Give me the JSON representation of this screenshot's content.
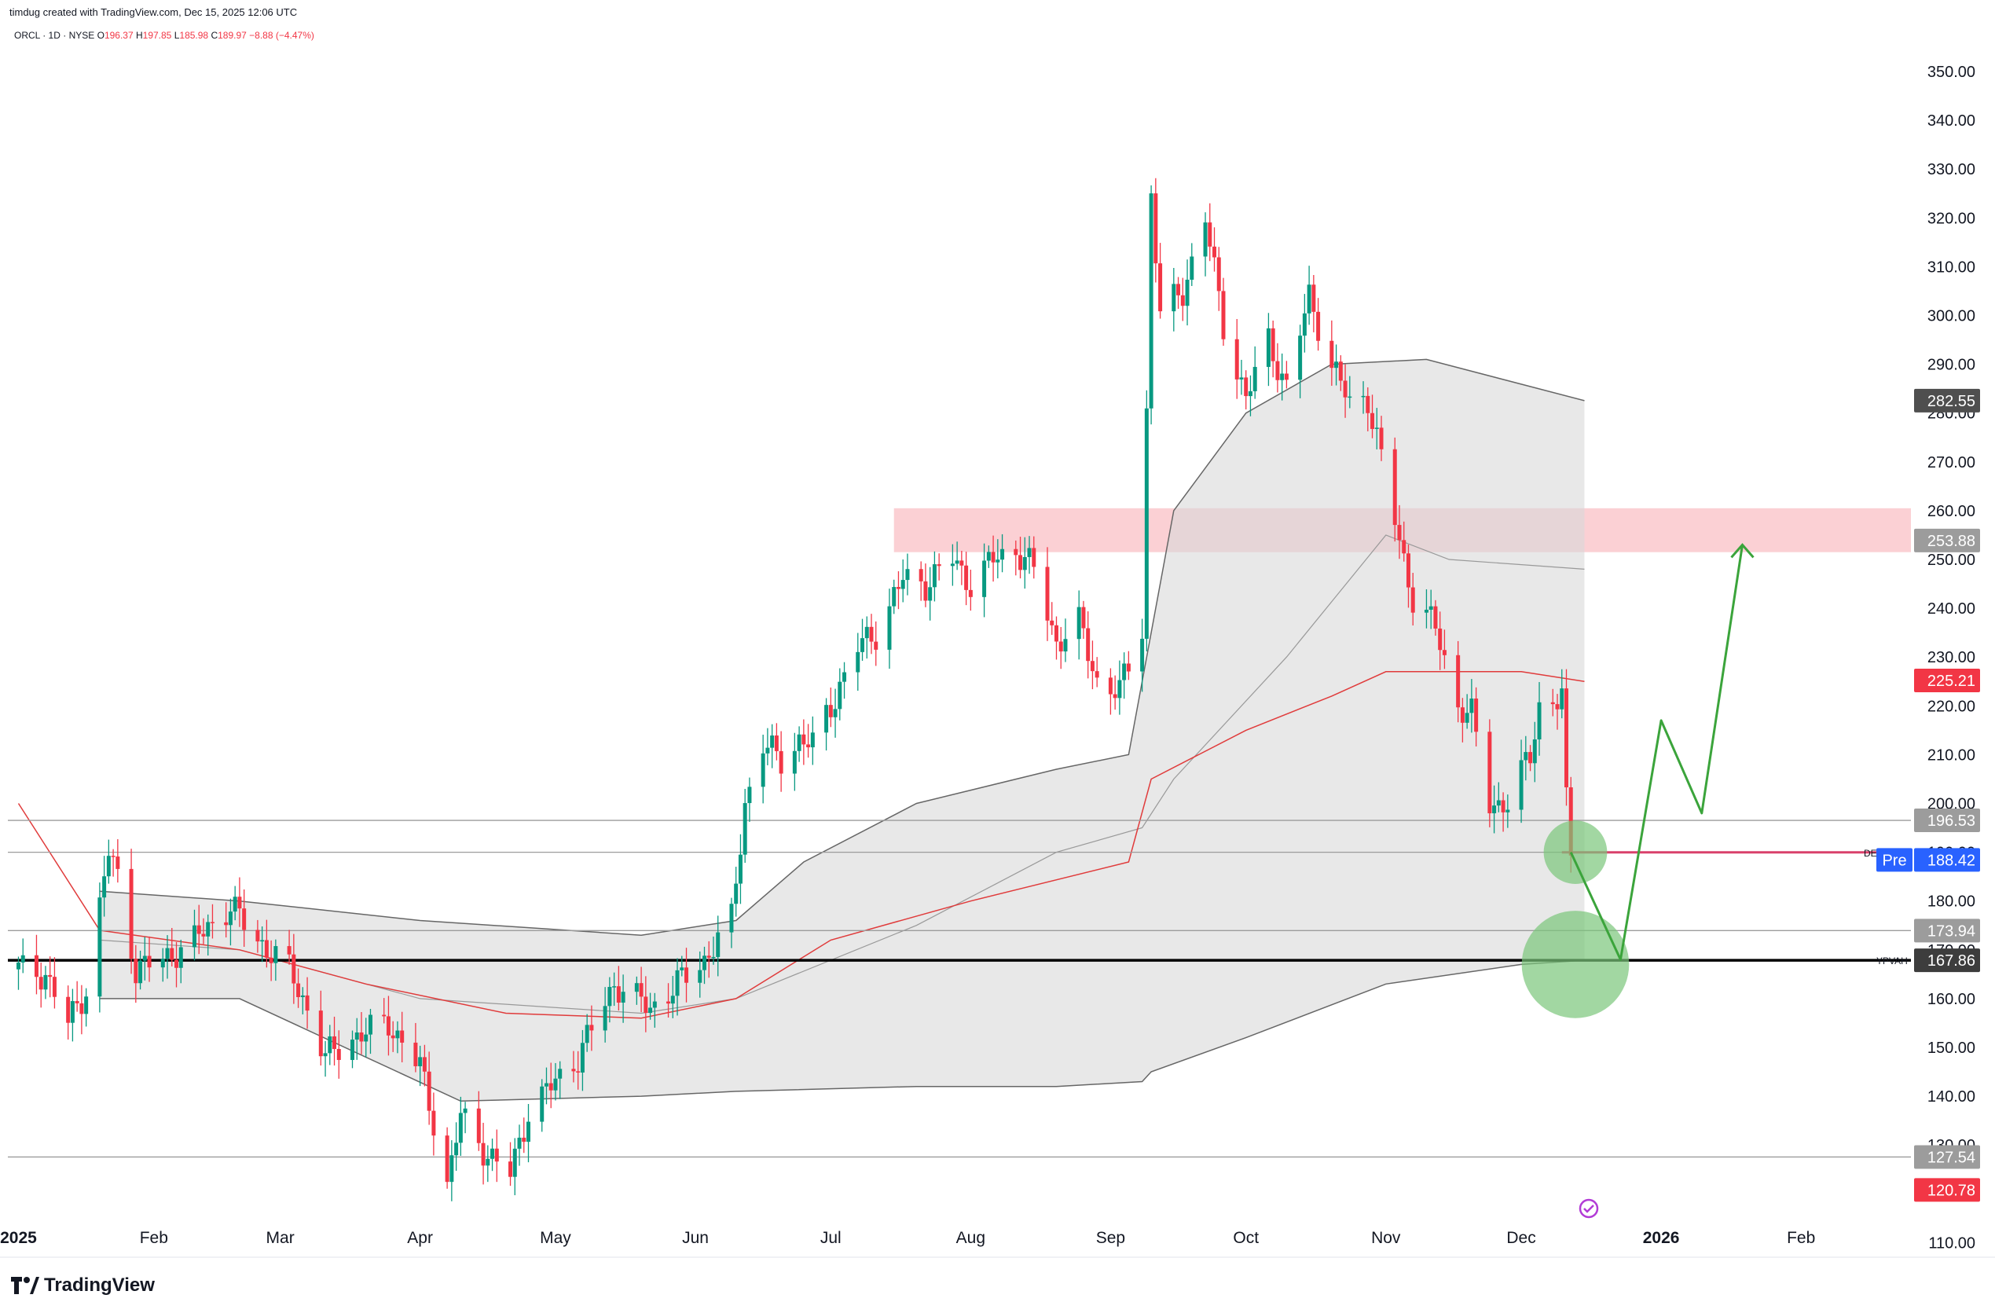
{
  "header": {
    "credit": "timdug created with TradingView.com, Dec 15, 2025 12:06 UTC",
    "symbol": "ORCL · 1D · NYSE",
    "o_label": "O",
    "o_value": "196.37",
    "h_label": "H",
    "h_value": "197.85",
    "l_label": "L",
    "l_value": "185.98",
    "c_label": "C",
    "c_value": "189.97 −8.88 (−4.47%)"
  },
  "branding": {
    "logo_text": "TradingView"
  },
  "colors": {
    "up": "#089981",
    "down": "#f23645",
    "zone": "#f7a9b1",
    "band_fill": "#d9d9d9",
    "projection": "#3ba43b",
    "circle": "#7bc67b",
    "ma": "#e03b3b"
  },
  "chart_data": {
    "type": "candlestick",
    "ylim": [
      107,
      355
    ],
    "y_ticks": [
      110,
      120,
      130,
      140,
      150,
      160,
      170,
      180,
      190,
      200,
      210,
      220,
      230,
      240,
      250,
      260,
      270,
      280,
      290,
      300,
      310,
      320,
      330,
      340,
      350
    ],
    "x_labels": [
      {
        "label": "2025",
        "date": "2025-01-02"
      },
      {
        "label": "Feb",
        "date": "2025-02-01"
      },
      {
        "label": "Mar",
        "date": "2025-03-01"
      },
      {
        "label": "Apr",
        "date": "2025-04-01"
      },
      {
        "label": "May",
        "date": "2025-05-01"
      },
      {
        "label": "Jun",
        "date": "2025-06-01"
      },
      {
        "label": "Jul",
        "date": "2025-07-01"
      },
      {
        "label": "Aug",
        "date": "2025-08-01"
      },
      {
        "label": "Sep",
        "date": "2025-09-01"
      },
      {
        "label": "Oct",
        "date": "2025-10-01"
      },
      {
        "label": "Nov",
        "date": "2025-11-01"
      },
      {
        "label": "Dec",
        "date": "2025-12-01"
      },
      {
        "label": "2026",
        "date": "2026-01-01"
      },
      {
        "label": "Feb",
        "date": "2026-02-01"
      }
    ],
    "x_range": [
      "2024-12-31",
      "2026-02-25"
    ],
    "price_path": [
      [
        "2025-01-02",
        166
      ],
      [
        "2025-01-08",
        165
      ],
      [
        "2025-01-13",
        155
      ],
      [
        "2025-01-17",
        162
      ],
      [
        "2025-01-22",
        190
      ],
      [
        "2025-01-24",
        185
      ],
      [
        "2025-01-28",
        166
      ],
      [
        "2025-02-03",
        168
      ],
      [
        "2025-02-10",
        172
      ],
      [
        "2025-02-18",
        179
      ],
      [
        "2025-02-24",
        172
      ],
      [
        "2025-03-03",
        166
      ],
      [
        "2025-03-07",
        158
      ],
      [
        "2025-03-11",
        148
      ],
      [
        "2025-03-17",
        152
      ],
      [
        "2025-03-25",
        155
      ],
      [
        "2025-04-01",
        146
      ],
      [
        "2025-04-04",
        135
      ],
      [
        "2025-04-07",
        122
      ],
      [
        "2025-04-10",
        136
      ],
      [
        "2025-04-16",
        128
      ],
      [
        "2025-04-21",
        124
      ],
      [
        "2025-04-25",
        137
      ],
      [
        "2025-05-01",
        143
      ],
      [
        "2025-05-06",
        148
      ],
      [
        "2025-05-14",
        163
      ],
      [
        "2025-05-22",
        158
      ],
      [
        "2025-05-28",
        163
      ],
      [
        "2025-06-03",
        168
      ],
      [
        "2025-06-09",
        176
      ],
      [
        "2025-06-12",
        200
      ],
      [
        "2025-06-16",
        212
      ],
      [
        "2025-06-20",
        209
      ],
      [
        "2025-06-24",
        213
      ],
      [
        "2025-06-27",
        212
      ],
      [
        "2025-07-01",
        220
      ],
      [
        "2025-07-07",
        232
      ],
      [
        "2025-07-11",
        235
      ],
      [
        "2025-07-17",
        246
      ],
      [
        "2025-07-22",
        245
      ],
      [
        "2025-07-28",
        250
      ],
      [
        "2025-08-01",
        245
      ],
      [
        "2025-08-06",
        250
      ],
      [
        "2025-08-11",
        252
      ],
      [
        "2025-08-15",
        248
      ],
      [
        "2025-08-20",
        233
      ],
      [
        "2025-08-25",
        237
      ],
      [
        "2025-08-29",
        225
      ],
      [
        "2025-09-03",
        223
      ],
      [
        "2025-09-08",
        236
      ],
      [
        "2025-09-10",
        325
      ],
      [
        "2025-09-12",
        300
      ],
      [
        "2025-09-17",
        305
      ],
      [
        "2025-09-22",
        320
      ],
      [
        "2025-09-26",
        298
      ],
      [
        "2025-10-01",
        283
      ],
      [
        "2025-10-06",
        295
      ],
      [
        "2025-10-10",
        285
      ],
      [
        "2025-10-15",
        304
      ],
      [
        "2025-10-20",
        290
      ],
      [
        "2025-10-24",
        282
      ],
      [
        "2025-10-28",
        283
      ],
      [
        "2025-11-03",
        258
      ],
      [
        "2025-11-07",
        242
      ],
      [
        "2025-11-12",
        236
      ],
      [
        "2025-11-17",
        220
      ],
      [
        "2025-11-20",
        218
      ],
      [
        "2025-11-24",
        200
      ],
      [
        "2025-11-28",
        200
      ],
      [
        "2025-12-03",
        210
      ],
      [
        "2025-12-05",
        220
      ],
      [
        "2025-12-09",
        221
      ],
      [
        "2025-12-10",
        222
      ],
      [
        "2025-12-11",
        200
      ],
      [
        "2025-12-12",
        190
      ]
    ],
    "ma_path": [
      [
        "2025-01-02",
        200
      ],
      [
        "2025-01-20",
        174
      ],
      [
        "2025-02-20",
        170
      ],
      [
        "2025-03-20",
        163
      ],
      [
        "2025-04-20",
        157
      ],
      [
        "2025-05-20",
        156
      ],
      [
        "2025-06-10",
        160
      ],
      [
        "2025-07-01",
        172
      ],
      [
        "2025-08-01",
        180
      ],
      [
        "2025-09-05",
        188
      ],
      [
        "2025-09-10",
        205
      ],
      [
        "2025-10-01",
        215
      ],
      [
        "2025-10-20",
        222
      ],
      [
        "2025-11-01",
        227
      ],
      [
        "2025-12-01",
        227
      ],
      [
        "2025-12-15",
        225
      ]
    ],
    "band_upper": [
      [
        "2025-01-20",
        182
      ],
      [
        "2025-02-20",
        180
      ],
      [
        "2025-04-01",
        176
      ],
      [
        "2025-05-20",
        173
      ],
      [
        "2025-06-10",
        176
      ],
      [
        "2025-06-25",
        188
      ],
      [
        "2025-07-20",
        200
      ],
      [
        "2025-08-20",
        207
      ],
      [
        "2025-09-05",
        210
      ],
      [
        "2025-09-15",
        260
      ],
      [
        "2025-10-01",
        280
      ],
      [
        "2025-10-20",
        290
      ],
      [
        "2025-11-10",
        291
      ],
      [
        "2025-12-15",
        282.55
      ]
    ],
    "band_lower": [
      [
        "2025-01-20",
        160
      ],
      [
        "2025-02-20",
        160
      ],
      [
        "2025-03-20",
        148
      ],
      [
        "2025-04-10",
        139
      ],
      [
        "2025-05-20",
        140
      ],
      [
        "2025-06-10",
        141
      ],
      [
        "2025-07-20",
        142
      ],
      [
        "2025-08-20",
        142
      ],
      [
        "2025-09-08",
        143
      ],
      [
        "2025-09-10",
        145
      ],
      [
        "2025-10-01",
        152
      ],
      [
        "2025-11-01",
        163
      ],
      [
        "2025-12-01",
        167
      ],
      [
        "2025-12-15",
        167.86
      ]
    ],
    "band_mid": [
      [
        "2025-01-20",
        172
      ],
      [
        "2025-02-20",
        170
      ],
      [
        "2025-04-01",
        160
      ],
      [
        "2025-05-20",
        157
      ],
      [
        "2025-06-10",
        160
      ],
      [
        "2025-07-20",
        175
      ],
      [
        "2025-08-20",
        190
      ],
      [
        "2025-09-08",
        195
      ],
      [
        "2025-09-15",
        205
      ],
      [
        "2025-10-10",
        230
      ],
      [
        "2025-11-01",
        255
      ],
      [
        "2025-11-15",
        250
      ],
      [
        "2025-12-15",
        248
      ]
    ],
    "resistance_zone": {
      "from": 251.5,
      "to": 260.5,
      "start": "2025-07-15"
    },
    "horizontal_lines": [
      {
        "price": 196.53,
        "style": "grey"
      },
      {
        "price": 190.0,
        "style": "grey"
      },
      {
        "price": 173.94,
        "style": "grey"
      },
      {
        "price": 127.54,
        "style": "grey"
      },
      {
        "price": 167.86,
        "style": "black",
        "label": "YPVAH"
      },
      {
        "price": 189.97,
        "style": "pink",
        "start": "2025-12-10"
      }
    ],
    "projection": [
      [
        "2025-12-12",
        190
      ],
      [
        "2025-12-23",
        168
      ],
      [
        "2026-01-01",
        217
      ],
      [
        "2026-01-10",
        198
      ],
      [
        "2026-01-19",
        253
      ]
    ],
    "circles": [
      {
        "date": "2025-12-13",
        "price": 190,
        "r_price": 6.5
      },
      {
        "date": "2025-12-13",
        "price": 167,
        "r_price": 11
      }
    ],
    "price_labels": [
      {
        "value": "282.55",
        "price": 282.55,
        "bg": "#4f4f4f"
      },
      {
        "value": "253.88",
        "price": 253.88,
        "bg": "#9c9c9c"
      },
      {
        "value": "225.21",
        "price": 225.21,
        "bg": "#f23645"
      },
      {
        "value": "196.53",
        "price": 196.53,
        "bg": "#9c9c9c"
      },
      {
        "value": "188.42",
        "price": 188.42,
        "bg": "#2962ff",
        "prefix": "Pre"
      },
      {
        "value": "173.94",
        "price": 173.94,
        "bg": "#9c9c9c"
      },
      {
        "value": "167.86",
        "price": 167.86,
        "bg": "#3d3d3d"
      },
      {
        "value": "127.54",
        "price": 127.54,
        "bg": "#9c9c9c"
      },
      {
        "value": "120.78",
        "price": 120.78,
        "bg": "#f23645"
      }
    ],
    "tags": {
      "ypvah": "YPVAH •",
      "de": "DE"
    }
  }
}
